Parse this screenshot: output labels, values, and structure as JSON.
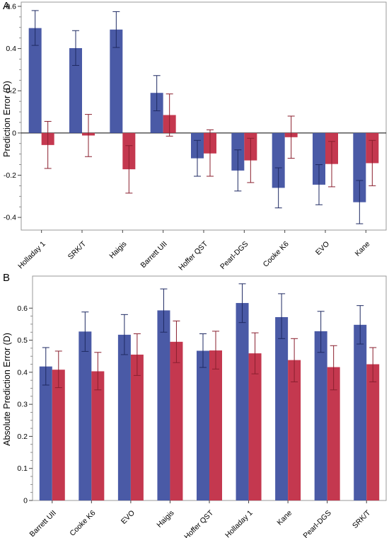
{
  "colors": {
    "series1": "#4a5aa6",
    "series2": "#c4384f",
    "err1": "#1f2a63",
    "err2": "#8a1f2e",
    "axis": "#9a9a9a",
    "zero": "#000000"
  },
  "chart_data": [
    {
      "type": "bar",
      "panel": "A",
      "ylabel": "Prediction Error (D)",
      "ylim": [
        -0.46,
        0.62
      ],
      "yticks": [
        -0.4,
        -0.2,
        0,
        0.2,
        0.4,
        0.6
      ],
      "ytick_labels": [
        "-0.4",
        "-0.2",
        "0",
        "0.2",
        "0.4",
        "0.6"
      ],
      "categories": [
        "Holladay 1",
        "SRK/T",
        "Haigis",
        "Barrett UII",
        "Hoffer QST",
        "Pearl-DGS",
        "Cooke K6",
        "EVO",
        "Kane"
      ],
      "series": [
        {
          "values": [
            0.497,
            0.402,
            0.49,
            0.19,
            -0.12,
            -0.178,
            -0.26,
            -0.245,
            -0.328
          ],
          "err_low": [
            0.415,
            0.32,
            0.405,
            0.105,
            -0.205,
            -0.275,
            -0.355,
            -0.34,
            -0.43
          ],
          "err_high": [
            0.58,
            0.485,
            0.575,
            0.272,
            -0.035,
            -0.08,
            -0.165,
            -0.15,
            -0.225
          ]
        },
        {
          "values": [
            -0.057,
            -0.012,
            -0.172,
            0.085,
            -0.097,
            -0.13,
            -0.02,
            -0.147,
            -0.143
          ],
          "err_low": [
            -0.168,
            -0.112,
            -0.285,
            -0.015,
            -0.205,
            -0.235,
            -0.12,
            -0.255,
            -0.25
          ],
          "err_high": [
            0.055,
            0.088,
            -0.06,
            0.185,
            0.015,
            -0.025,
            0.08,
            -0.04,
            -0.035
          ]
        }
      ]
    },
    {
      "type": "bar",
      "panel": "B",
      "ylabel": "Absolute Prediction Error (D)",
      "ylim": [
        0,
        0.7
      ],
      "yticks": [
        0,
        0.1,
        0.2,
        0.3,
        0.4,
        0.5,
        0.6
      ],
      "ytick_labels": [
        "0",
        "0.1",
        "0.2",
        "0.3",
        "0.4",
        "0.5",
        "0.6"
      ],
      "categories": [
        "Barrett UII",
        "Cooke K6",
        "EVO",
        "Haigis",
        "Hoffer QST",
        "Holladay 1",
        "Kane",
        "Pearl-DGS",
        "SRK/T"
      ],
      "series": [
        {
          "values": [
            0.418,
            0.527,
            0.517,
            0.593,
            0.467,
            0.616,
            0.572,
            0.528,
            0.548
          ],
          "err_low": [
            0.36,
            0.465,
            0.455,
            0.525,
            0.415,
            0.555,
            0.505,
            0.462,
            0.488
          ],
          "err_high": [
            0.477,
            0.588,
            0.58,
            0.66,
            0.52,
            0.676,
            0.645,
            0.59,
            0.608
          ]
        },
        {
          "values": [
            0.408,
            0.403,
            0.455,
            0.495,
            0.468,
            0.459,
            0.438,
            0.416,
            0.425
          ],
          "err_low": [
            0.352,
            0.345,
            0.39,
            0.43,
            0.41,
            0.395,
            0.37,
            0.345,
            0.37
          ],
          "err_high": [
            0.466,
            0.462,
            0.52,
            0.56,
            0.528,
            0.523,
            0.505,
            0.483,
            0.477
          ]
        }
      ]
    }
  ]
}
